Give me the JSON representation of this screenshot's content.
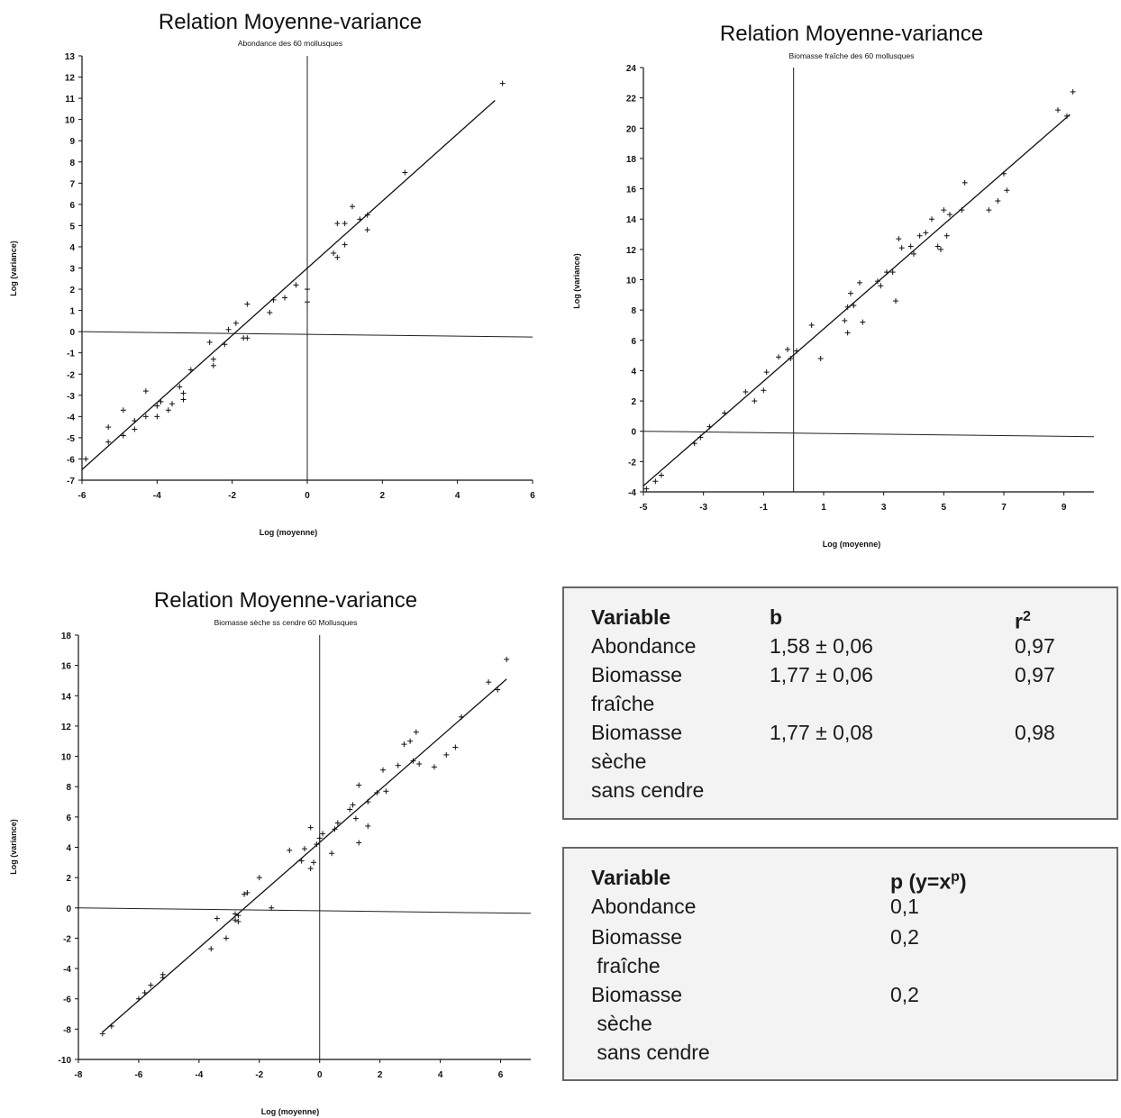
{
  "chart_data": [
    {
      "type": "scatter",
      "title": "Relation Moyenne-variance",
      "subtitle": "Abondance des 60 mollusques",
      "xlabel": "Log (moyenne)",
      "ylabel": "Log (variance)",
      "xlim": [
        -6,
        6
      ],
      "ylim": [
        -7,
        13
      ],
      "xticks": [
        "-6",
        "-4",
        "-2",
        "0",
        "2",
        "4",
        "6"
      ],
      "yticks": [
        "13",
        "12",
        "11",
        "10",
        "9",
        "8",
        "7",
        "6",
        "5",
        "4",
        "3",
        "2",
        "1",
        "0",
        "-1",
        "-2",
        "-3",
        "-4",
        "-5",
        "-6",
        "-7"
      ],
      "xtick_values": [
        -6,
        -4,
        -2,
        0,
        2,
        4,
        6
      ],
      "ytick_values": [
        13,
        12,
        11,
        10,
        9,
        8,
        7,
        6,
        5,
        4,
        3,
        2,
        1,
        0,
        -1,
        -2,
        -3,
        -4,
        -5,
        -6,
        -7
      ],
      "points": [
        [
          -5.9,
          -6.0
        ],
        [
          -5.3,
          -5.2
        ],
        [
          -5.3,
          -4.5
        ],
        [
          -4.9,
          -4.9
        ],
        [
          -4.9,
          -3.7
        ],
        [
          -4.6,
          -4.6
        ],
        [
          -4.6,
          -4.2
        ],
        [
          -4.3,
          -4.0
        ],
        [
          -4.3,
          -2.8
        ],
        [
          -4.0,
          -4.0
        ],
        [
          -4.0,
          -3.5
        ],
        [
          -3.9,
          -3.3
        ],
        [
          -3.7,
          -3.7
        ],
        [
          -3.6,
          -3.4
        ],
        [
          -3.4,
          -2.6
        ],
        [
          -3.3,
          -3.2
        ],
        [
          -3.3,
          -2.9
        ],
        [
          -3.1,
          -1.8
        ],
        [
          -2.6,
          -0.5
        ],
        [
          -2.5,
          -1.3
        ],
        [
          -2.5,
          -1.6
        ],
        [
          -2.2,
          -0.6
        ],
        [
          -2.1,
          0.1
        ],
        [
          -1.9,
          0.4
        ],
        [
          -1.7,
          -0.3
        ],
        [
          -1.6,
          -0.3
        ],
        [
          -1.6,
          1.3
        ],
        [
          -1.0,
          0.9
        ],
        [
          -0.9,
          1.5
        ],
        [
          -0.6,
          1.6
        ],
        [
          -0.3,
          2.2
        ],
        [
          0.0,
          1.4
        ],
        [
          0.0,
          2.0
        ],
        [
          0.7,
          3.7
        ],
        [
          0.8,
          3.5
        ],
        [
          0.8,
          5.1
        ],
        [
          1.0,
          5.1
        ],
        [
          1.0,
          4.1
        ],
        [
          1.2,
          5.9
        ],
        [
          1.4,
          5.3
        ],
        [
          1.6,
          5.5
        ],
        [
          1.6,
          4.8
        ],
        [
          2.6,
          7.5
        ],
        [
          5.2,
          11.7
        ]
      ],
      "fit": {
        "x": [
          -6,
          5.0
        ],
        "y": [
          -6.5,
          10.9
        ]
      },
      "ref_lines": {
        "x": 0,
        "y": 0
      }
    },
    {
      "type": "scatter",
      "title": "Relation Moyenne-variance",
      "subtitle": "Biomasse fraîche des 60 mollusques",
      "xlabel": "Log (moyenne)",
      "ylabel": "Log (variance)",
      "xlim": [
        -5,
        10
      ],
      "ylim": [
        -4,
        24
      ],
      "xticks": [
        "-5",
        "-3",
        "-1",
        "1",
        "3",
        "5",
        "7",
        "9"
      ],
      "yticks": [
        "24",
        "22",
        "20",
        "18",
        "16",
        "14",
        "12",
        "10",
        "8",
        "6",
        "4",
        "2",
        "0",
        "-2",
        "-4"
      ],
      "xtick_values": [
        -5,
        -3,
        -1,
        1,
        3,
        5,
        7,
        9
      ],
      "ytick_values": [
        24,
        22,
        20,
        18,
        16,
        14,
        12,
        10,
        8,
        6,
        4,
        2,
        0,
        -2,
        -4
      ],
      "points": [
        [
          -4.9,
          -3.8
        ],
        [
          -4.6,
          -3.3
        ],
        [
          -4.4,
          -2.9
        ],
        [
          -3.3,
          -0.8
        ],
        [
          -3.1,
          -0.4
        ],
        [
          -2.8,
          0.3
        ],
        [
          -2.3,
          1.2
        ],
        [
          -1.6,
          2.6
        ],
        [
          -1.3,
          2.0
        ],
        [
          -1.0,
          2.7
        ],
        [
          -0.9,
          3.9
        ],
        [
          -0.5,
          4.9
        ],
        [
          -0.2,
          5.4
        ],
        [
          -0.1,
          4.8
        ],
        [
          0.1,
          5.3
        ],
        [
          0.6,
          7.0
        ],
        [
          0.9,
          4.8
        ],
        [
          1.7,
          7.3
        ],
        [
          1.8,
          6.5
        ],
        [
          1.8,
          8.2
        ],
        [
          1.9,
          9.1
        ],
        [
          2.0,
          8.3
        ],
        [
          2.2,
          9.8
        ],
        [
          2.3,
          7.2
        ],
        [
          2.8,
          9.9
        ],
        [
          2.9,
          9.6
        ],
        [
          3.1,
          10.5
        ],
        [
          3.3,
          10.5
        ],
        [
          3.4,
          8.6
        ],
        [
          3.5,
          12.7
        ],
        [
          3.6,
          12.1
        ],
        [
          3.9,
          12.2
        ],
        [
          4.0,
          11.7
        ],
        [
          4.2,
          12.9
        ],
        [
          4.4,
          13.1
        ],
        [
          4.6,
          14.0
        ],
        [
          4.8,
          12.2
        ],
        [
          4.9,
          12.0
        ],
        [
          5.0,
          14.6
        ],
        [
          5.1,
          12.9
        ],
        [
          5.2,
          14.3
        ],
        [
          5.6,
          14.6
        ],
        [
          5.7,
          16.4
        ],
        [
          6.5,
          14.6
        ],
        [
          6.8,
          15.2
        ],
        [
          7.1,
          15.9
        ],
        [
          7.0,
          17.0
        ],
        [
          8.8,
          21.2
        ],
        [
          9.1,
          20.8
        ],
        [
          9.3,
          22.4
        ]
      ],
      "fit": {
        "x": [
          -5,
          9.2
        ],
        "y": [
          -3.6,
          20.9
        ]
      },
      "ref_lines": {
        "x": 0,
        "y": 0
      }
    },
    {
      "type": "scatter",
      "title": "Relation Moyenne-variance",
      "subtitle": "Biomasse sèche ss cendre 60 Mollusques",
      "xlabel": "Log (moyenne)",
      "ylabel": "Log (variance)",
      "xlim": [
        -8,
        7
      ],
      "ylim": [
        -10,
        18
      ],
      "xticks": [
        "-8",
        "-6",
        "-4",
        "-2",
        "0",
        "2",
        "4",
        "6"
      ],
      "yticks": [
        "18",
        "16",
        "14",
        "12",
        "10",
        "8",
        "6",
        "4",
        "2",
        "0",
        "-2",
        "-4",
        "-6",
        "-8",
        "-10"
      ],
      "xtick_values": [
        -8,
        -6,
        -4,
        -2,
        0,
        2,
        4,
        6
      ],
      "ytick_values": [
        18,
        16,
        14,
        12,
        10,
        8,
        6,
        4,
        2,
        0,
        -2,
        -4,
        -6,
        -8,
        -10
      ],
      "points": [
        [
          -7.2,
          -8.3
        ],
        [
          -6.9,
          -7.8
        ],
        [
          -6.0,
          -6.0
        ],
        [
          -5.8,
          -5.6
        ],
        [
          -5.6,
          -5.1
        ],
        [
          -5.2,
          -4.6
        ],
        [
          -5.2,
          -4.4
        ],
        [
          -3.6,
          -2.7
        ],
        [
          -3.4,
          -0.7
        ],
        [
          -3.1,
          -2.0
        ],
        [
          -2.8,
          -0.4
        ],
        [
          -2.8,
          -0.8
        ],
        [
          -2.7,
          -0.5
        ],
        [
          -2.7,
          -0.9
        ],
        [
          -2.5,
          0.9
        ],
        [
          -2.4,
          1.0
        ],
        [
          -2.0,
          2.0
        ],
        [
          -1.6,
          0.0
        ],
        [
          -1.0,
          3.8
        ],
        [
          -0.6,
          3.1
        ],
        [
          -0.5,
          3.9
        ],
        [
          -0.3,
          5.3
        ],
        [
          -0.3,
          2.6
        ],
        [
          -0.2,
          3.0
        ],
        [
          -0.1,
          4.2
        ],
        [
          0.0,
          4.6
        ],
        [
          0.1,
          4.9
        ],
        [
          0.4,
          3.6
        ],
        [
          0.5,
          5.2
        ],
        [
          0.6,
          5.6
        ],
        [
          1.0,
          6.5
        ],
        [
          1.1,
          6.8
        ],
        [
          1.2,
          5.9
        ],
        [
          1.3,
          8.1
        ],
        [
          1.3,
          4.3
        ],
        [
          1.6,
          7.0
        ],
        [
          1.6,
          5.4
        ],
        [
          1.9,
          7.6
        ],
        [
          2.1,
          9.1
        ],
        [
          2.2,
          7.7
        ],
        [
          2.6,
          9.4
        ],
        [
          2.8,
          10.8
        ],
        [
          3.0,
          11.0
        ],
        [
          3.2,
          11.6
        ],
        [
          3.3,
          9.5
        ],
        [
          3.1,
          9.7
        ],
        [
          3.8,
          9.3
        ],
        [
          4.2,
          10.1
        ],
        [
          4.5,
          10.6
        ],
        [
          4.7,
          12.6
        ],
        [
          5.6,
          14.9
        ],
        [
          5.9,
          14.4
        ],
        [
          6.2,
          16.4
        ]
      ],
      "fit": {
        "x": [
          -7.2,
          6.2
        ],
        "y": [
          -8.2,
          15.1
        ]
      },
      "ref_lines": {
        "x": 0,
        "y": 0
      }
    }
  ],
  "table1": {
    "headers": [
      "Variable",
      "b",
      "r"
    ],
    "r_sup": "2",
    "rows": [
      {
        "variable": "Abondance",
        "b": "1,58 ± 0,06",
        "r2": "0,97"
      },
      {
        "variable": "Biomasse\nfraîche",
        "b": "1,77 ± 0,06",
        "r2": "0,97"
      },
      {
        "variable": "Biomasse\nsèche\nsans cendre",
        "b": "1,77 ± 0,08",
        "r2": "0,98"
      }
    ]
  },
  "table2": {
    "headers": [
      "Variable",
      "p (y=x",
      ")"
    ],
    "p_sup": "p",
    "rows": [
      {
        "variable": "Abondance",
        "p": "0,1"
      },
      {
        "variable": "Biomasse\n fraîche",
        "p": "0,2"
      },
      {
        "variable": "Biomasse\n sèche\n sans cendre",
        "p": "0,2"
      }
    ]
  }
}
